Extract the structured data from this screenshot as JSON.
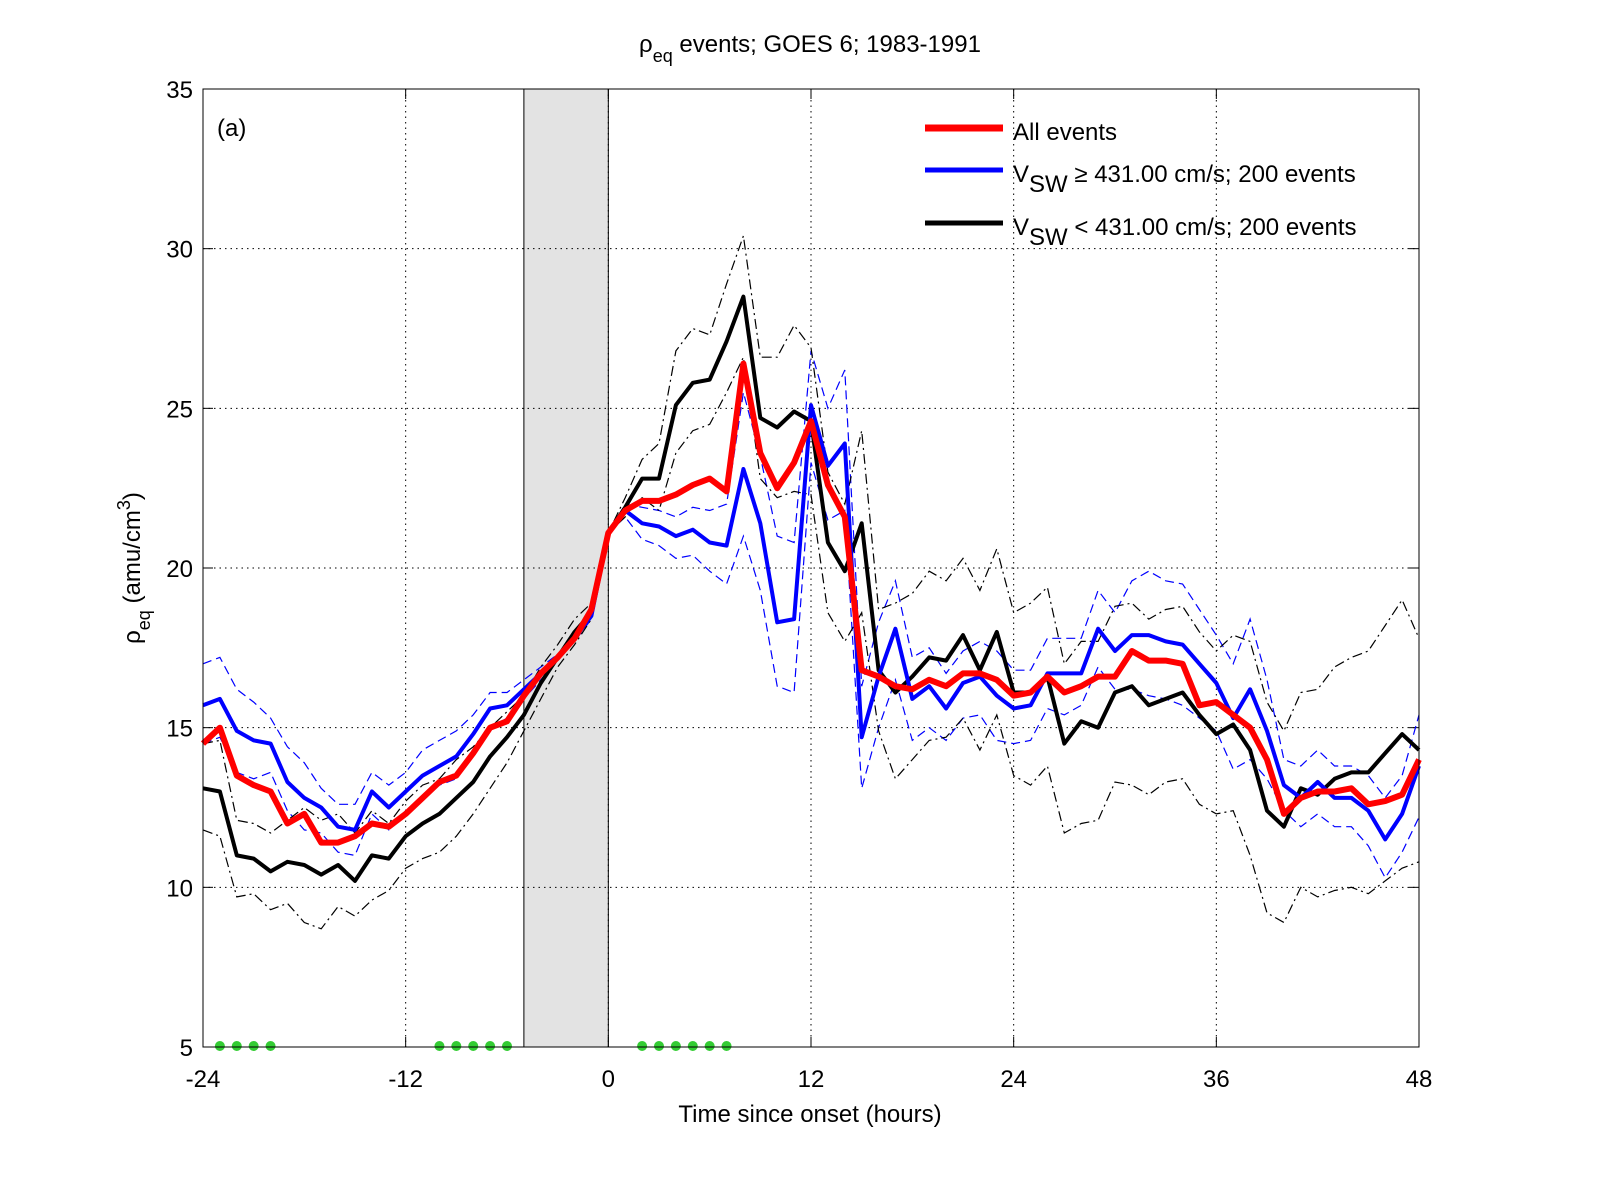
{
  "chart_data": {
    "type": "line",
    "title": {
      "symbol": "ρ",
      "subscript": "eq",
      "text": " events; GOES 6; 1983-1991"
    },
    "panel_label": "(a)",
    "x_label": "Time since onset (hours)",
    "y_label": {
      "symbol": "ρ",
      "subscript": "eq",
      "text": " (amu/cm",
      "superscript": "3",
      "end": ")"
    },
    "xlim": [
      -24,
      48
    ],
    "xticks": [
      -24,
      -12,
      0,
      12,
      24,
      36,
      48
    ],
    "ylim": [
      5,
      35
    ],
    "yticks": [
      5,
      10,
      15,
      20,
      25,
      30,
      35
    ],
    "grid": true,
    "legend": "upper right",
    "x": [
      -24,
      -23,
      -22,
      -21,
      -20,
      -19,
      -18,
      -17,
      -16,
      -15,
      -14,
      -13,
      -12,
      -11,
      -10,
      -9,
      -8,
      -7,
      -6,
      -5,
      -4,
      -3,
      -2,
      -1,
      0,
      1,
      2,
      3,
      4,
      5,
      6,
      7,
      8,
      9,
      10,
      11,
      12,
      13,
      14,
      15,
      16,
      17,
      18,
      19,
      20,
      21,
      22,
      23,
      24,
      25,
      26,
      27,
      28,
      29,
      30,
      31,
      32,
      33,
      34,
      35,
      36,
      37,
      38,
      39,
      40,
      41,
      42,
      43,
      44,
      45,
      46,
      47,
      48
    ],
    "shade": {
      "x": [
        -5,
        0
      ],
      "color": "#e3e3e3"
    },
    "series": [
      {
        "name": "All events",
        "color": "#ff0000",
        "width": 6,
        "values": [
          14.5,
          15.0,
          13.5,
          13.2,
          13.0,
          12.0,
          12.3,
          11.4,
          11.4,
          11.6,
          12.0,
          11.9,
          12.3,
          12.8,
          13.3,
          13.5,
          14.2,
          15.0,
          15.2,
          16.0,
          16.7,
          17.2,
          17.8,
          18.7,
          21.1,
          21.8,
          22.1,
          22.1,
          22.3,
          22.6,
          22.8,
          22.4,
          26.4,
          23.6,
          22.5,
          23.3,
          24.6,
          22.6,
          21.6,
          16.8,
          16.6,
          16.3,
          16.2,
          16.5,
          16.3,
          16.7,
          16.7,
          16.5,
          16.0,
          16.1,
          16.6,
          16.1,
          16.3,
          16.6,
          16.6,
          17.4,
          17.1,
          17.1,
          17.0,
          15.7,
          15.8,
          15.4,
          15.0,
          14.0,
          12.3,
          12.8,
          13.0,
          13.0,
          13.1,
          12.6,
          12.7,
          12.9,
          14.0
        ]
      },
      {
        "name": {
          "base": "V",
          "sub": "SW",
          "text": " ≥ 431.00 cm/s; 200 events"
        },
        "color": "#0000ff",
        "width": 4,
        "values": [
          15.7,
          15.9,
          14.9,
          14.6,
          14.5,
          13.3,
          12.8,
          12.5,
          11.9,
          11.8,
          13.0,
          12.5,
          13.0,
          13.5,
          13.8,
          14.1,
          14.8,
          15.6,
          15.7,
          16.2,
          16.7,
          17.2,
          17.8,
          18.5,
          21.1,
          21.8,
          21.4,
          21.3,
          21.0,
          21.2,
          20.8,
          20.7,
          23.1,
          21.4,
          18.3,
          18.4,
          25.1,
          23.2,
          23.9,
          14.7,
          16.6,
          18.1,
          15.9,
          16.3,
          15.6,
          16.4,
          16.6,
          16.0,
          15.6,
          15.7,
          16.7,
          16.7,
          16.7,
          18.1,
          17.4,
          17.9,
          17.9,
          17.7,
          17.6,
          17.0,
          16.4,
          15.3,
          16.2,
          14.9,
          13.2,
          12.8,
          13.3,
          12.8,
          12.8,
          12.4,
          11.5,
          12.3,
          13.8
        ]
      },
      {
        "name": {
          "base": "V",
          "sub": "SW",
          "text": " < 431.00 cm/s; 200 events"
        },
        "color": "#000000",
        "width": 4,
        "values": [
          13.1,
          13.0,
          11.0,
          10.9,
          10.5,
          10.8,
          10.7,
          10.4,
          10.7,
          10.2,
          11.0,
          10.9,
          11.6,
          12.0,
          12.3,
          12.8,
          13.3,
          14.1,
          14.7,
          15.4,
          16.4,
          17.2,
          18.0,
          18.6,
          21.1,
          21.9,
          22.8,
          22.8,
          25.1,
          25.8,
          25.9,
          27.1,
          28.5,
          24.7,
          24.4,
          24.9,
          24.6,
          20.8,
          19.9,
          21.4,
          16.8,
          16.1,
          16.6,
          17.2,
          17.1,
          17.9,
          16.8,
          18.0,
          16.1,
          16.1,
          16.6,
          14.5,
          15.2,
          15.0,
          16.1,
          16.3,
          15.7,
          15.9,
          16.1,
          15.4,
          14.8,
          15.1,
          14.3,
          12.4,
          11.9,
          13.1,
          12.9,
          13.4,
          13.6,
          13.6,
          14.2,
          14.8,
          14.3
        ]
      }
    ],
    "envelopes": [
      {
        "color": "#0000ff",
        "style": "dashed",
        "upper": [
          17.0,
          17.2,
          16.2,
          15.8,
          15.3,
          14.4,
          13.9,
          13.1,
          12.6,
          12.6,
          13.6,
          13.2,
          13.6,
          14.3,
          14.6,
          14.9,
          15.4,
          16.1,
          16.1,
          16.5,
          16.9,
          17.3,
          17.8,
          18.6,
          21.1,
          22.0,
          21.9,
          21.8,
          21.6,
          21.9,
          21.8,
          22.0,
          25.5,
          23.5,
          21.0,
          20.8,
          26.8,
          25.0,
          26.2,
          16.3,
          18.3,
          19.6,
          17.2,
          17.5,
          16.7,
          17.4,
          17.7,
          17.4,
          16.8,
          16.8,
          17.8,
          17.8,
          17.8,
          19.3,
          18.6,
          19.6,
          19.9,
          19.6,
          19.5,
          18.7,
          17.9,
          17.0,
          18.4,
          16.5,
          14.0,
          13.8,
          14.3,
          13.8,
          13.8,
          13.5,
          12.8,
          13.5,
          15.4
        ],
        "lower": [
          14.5,
          14.7,
          13.6,
          13.4,
          13.6,
          12.4,
          11.8,
          11.7,
          11.1,
          11.0,
          12.3,
          11.8,
          12.4,
          12.8,
          13.2,
          13.4,
          14.2,
          15.0,
          15.3,
          15.9,
          16.5,
          17.1,
          17.7,
          18.4,
          21.1,
          21.6,
          20.9,
          20.7,
          20.3,
          20.4,
          19.9,
          19.5,
          21.0,
          19.3,
          16.3,
          16.1,
          23.3,
          21.5,
          21.8,
          13.1,
          15.0,
          16.5,
          14.6,
          15.0,
          14.6,
          15.3,
          15.4,
          14.6,
          14.5,
          14.6,
          15.6,
          15.4,
          15.7,
          16.9,
          16.2,
          16.2,
          16.0,
          15.9,
          15.7,
          15.3,
          14.9,
          13.7,
          14.0,
          13.4,
          12.4,
          11.9,
          12.3,
          11.9,
          11.9,
          11.3,
          10.3,
          11.1,
          12.2
        ]
      },
      {
        "color": "#000000",
        "style": "dashdot",
        "upper": [
          14.5,
          14.6,
          12.1,
          12.0,
          11.7,
          12.1,
          12.5,
          12.1,
          12.3,
          11.7,
          12.4,
          12.0,
          12.7,
          13.2,
          13.4,
          14.0,
          14.4,
          15.0,
          15.5,
          16.0,
          16.9,
          17.6,
          18.4,
          18.9,
          21.1,
          22.2,
          23.4,
          23.9,
          26.8,
          27.5,
          27.3,
          28.9,
          30.4,
          26.6,
          26.6,
          27.6,
          26.9,
          23.0,
          22.0,
          24.3,
          18.7,
          18.9,
          19.2,
          19.9,
          19.6,
          20.3,
          19.3,
          20.6,
          18.6,
          18.9,
          19.4,
          17.0,
          17.7,
          17.7,
          18.8,
          18.9,
          18.4,
          18.7,
          18.8,
          18.0,
          17.4,
          17.9,
          17.7,
          15.8,
          14.9,
          16.1,
          16.2,
          16.9,
          17.2,
          17.4,
          18.2,
          19.0,
          17.8
        ],
        "lower": [
          11.8,
          11.6,
          9.7,
          9.8,
          9.3,
          9.5,
          8.9,
          8.7,
          9.4,
          9.1,
          9.6,
          9.9,
          10.6,
          10.9,
          11.1,
          11.6,
          12.3,
          13.1,
          13.9,
          14.9,
          15.9,
          16.9,
          17.6,
          18.4,
          21.1,
          21.6,
          22.2,
          21.8,
          23.6,
          24.3,
          24.5,
          25.5,
          26.6,
          22.8,
          22.2,
          22.4,
          22.3,
          18.6,
          17.7,
          18.6,
          14.9,
          13.4,
          14.0,
          14.6,
          14.7,
          15.3,
          14.3,
          15.4,
          13.5,
          13.2,
          13.8,
          11.7,
          12.0,
          12.1,
          13.3,
          13.2,
          12.9,
          13.3,
          13.4,
          12.6,
          12.3,
          12.4,
          11.0,
          9.2,
          8.9,
          10.0,
          9.7,
          9.9,
          10.0,
          9.8,
          10.2,
          10.6,
          10.8
        ]
      }
    ],
    "markers": {
      "color": "#33cc33",
      "x": [
        -23,
        -22,
        -21,
        -20,
        -10,
        -9,
        -8,
        -7,
        -6,
        2,
        3,
        4,
        5,
        6,
        7
      ]
    }
  }
}
